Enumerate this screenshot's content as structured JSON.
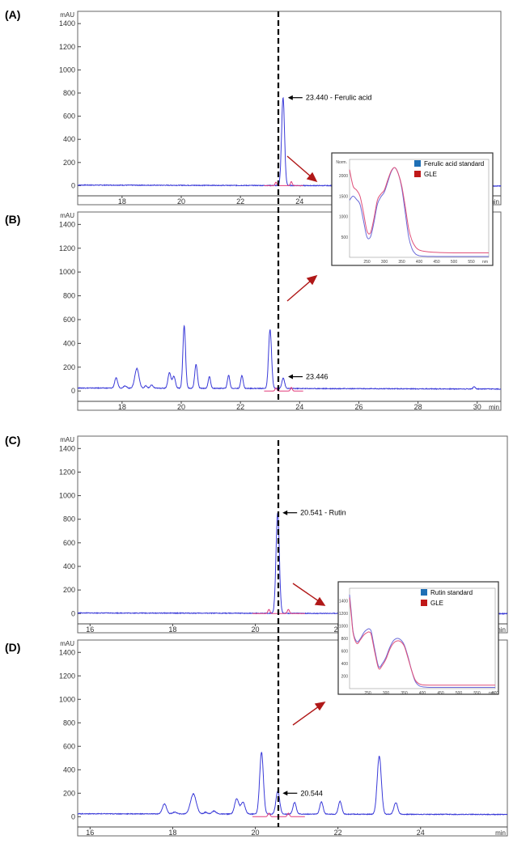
{
  "colors": {
    "trace": "#3a3ad8",
    "overlay": "#e03a7a",
    "baseline": "#3a3ad8",
    "arrow": "#b01818",
    "frame": "#666666",
    "dashed": "#000000",
    "legend_standard": "#1f6fb5",
    "legend_gle": "#c01818",
    "inset_standard": "#6a6ad8",
    "inset_gle": "#e0507a"
  },
  "chart_data": [
    {
      "id": "A",
      "type": "line",
      "panel_label": "(A)",
      "ylabel": "mAU",
      "xlabel": "min",
      "xlim": [
        16.5,
        30.8
      ],
      "ylim": [
        -60,
        1450
      ],
      "yticks": [
        0,
        200,
        400,
        600,
        800,
        1000,
        1200,
        1400
      ],
      "xticks": [
        18,
        20,
        22,
        24
      ],
      "baseline": 5,
      "peaks": [
        [
          23.44,
          760,
          0.05
        ]
      ],
      "overlay_peaks": [
        [
          23.2,
          30,
          0.03
        ],
        [
          23.72,
          35,
          0.03
        ]
      ],
      "annotation": {
        "x": 23.44,
        "y": 760,
        "text": "23.440 -  Ferulic acid"
      }
    },
    {
      "id": "B",
      "type": "line",
      "panel_label": "(B)",
      "ylabel": "mAU",
      "xlabel": "min",
      "xlim": [
        16.5,
        30.8
      ],
      "ylim": [
        -60,
        1450
      ],
      "yticks": [
        0,
        200,
        400,
        600,
        800,
        1000,
        1200,
        1400
      ],
      "xticks": [
        18,
        20,
        22,
        24,
        26,
        28,
        30
      ],
      "baseline": 25,
      "peaks": [
        [
          17.8,
          85,
          0.05
        ],
        [
          18.1,
          20,
          0.05
        ],
        [
          18.5,
          165,
          0.07
        ],
        [
          18.8,
          20,
          0.04
        ],
        [
          19.0,
          25,
          0.05
        ],
        [
          19.6,
          130,
          0.05
        ],
        [
          19.75,
          100,
          0.05
        ],
        [
          20.1,
          525,
          0.045
        ],
        [
          20.5,
          200,
          0.045
        ],
        [
          20.95,
          100,
          0.04
        ],
        [
          21.6,
          110,
          0.04
        ],
        [
          22.05,
          110,
          0.04
        ],
        [
          23.0,
          495,
          0.05
        ],
        [
          23.446,
          90,
          0.045
        ],
        [
          29.9,
          18,
          0.04
        ]
      ],
      "overlay_peaks": [
        [
          23.2,
          25,
          0.03
        ],
        [
          23.72,
          30,
          0.03
        ]
      ],
      "annotation": {
        "x": 23.446,
        "y": 120,
        "text": "23.446"
      }
    },
    {
      "id": "C",
      "type": "line",
      "panel_label": "(C)",
      "ylabel": "mAU",
      "xlabel": "min",
      "xlim": [
        15.7,
        26.1
      ],
      "ylim": [
        -60,
        1450
      ],
      "yticks": [
        0,
        200,
        400,
        600,
        800,
        1000,
        1200,
        1400
      ],
      "xticks": [
        16,
        18,
        20,
        22
      ],
      "baseline": 5,
      "peaks": [
        [
          20.541,
          855,
          0.04
        ]
      ],
      "overlay_peaks": [
        [
          20.33,
          35,
          0.025
        ],
        [
          20.8,
          35,
          0.025
        ]
      ],
      "annotation": {
        "x": 20.541,
        "y": 855,
        "text": "20.541 -  Rutin"
      }
    },
    {
      "id": "D",
      "type": "line",
      "panel_label": "(D)",
      "ylabel": "mAU",
      "xlabel": "min",
      "xlim": [
        15.7,
        26.1
      ],
      "ylim": [
        -60,
        1450
      ],
      "yticks": [
        0,
        200,
        400,
        600,
        800,
        1000,
        1200,
        1400
      ],
      "xticks": [
        16,
        18,
        20,
        22,
        24
      ],
      "baseline": 25,
      "peaks": [
        [
          17.8,
          85,
          0.05
        ],
        [
          18.05,
          15,
          0.05
        ],
        [
          18.5,
          170,
          0.07
        ],
        [
          18.8,
          15,
          0.04
        ],
        [
          19.0,
          25,
          0.05
        ],
        [
          19.55,
          130,
          0.05
        ],
        [
          19.7,
          100,
          0.05
        ],
        [
          20.15,
          525,
          0.045
        ],
        [
          20.544,
          195,
          0.045
        ],
        [
          20.95,
          100,
          0.04
        ],
        [
          21.6,
          105,
          0.04
        ],
        [
          22.05,
          110,
          0.04
        ],
        [
          23.0,
          495,
          0.05
        ],
        [
          23.4,
          100,
          0.045
        ]
      ],
      "overlay_peaks": [
        [
          20.33,
          30,
          0.025
        ],
        [
          20.8,
          30,
          0.025
        ]
      ],
      "annotation": {
        "x": 20.544,
        "y": 200,
        "text": "20.544"
      }
    }
  ],
  "insets": [
    {
      "id": "inset-ferulic",
      "xlim": [
        200,
        600
      ],
      "ylim": [
        0,
        2400
      ],
      "ylabel": "Norm.",
      "yticks": [
        500,
        1000,
        1500,
        2000
      ],
      "xticks": [
        250,
        300,
        350,
        400,
        450,
        500,
        550
      ],
      "xunit": "nm",
      "legend": [
        "Ferulic acid standard",
        "GLE"
      ],
      "series": [
        {
          "name": "Ferulic acid standard",
          "x": [
            200,
            210,
            220,
            230,
            240,
            250,
            260,
            270,
            280,
            290,
            300,
            310,
            320,
            330,
            340,
            350,
            360,
            370,
            380,
            390,
            400,
            420,
            450,
            500,
            550,
            600
          ],
          "y": [
            1400,
            1500,
            1420,
            1300,
            900,
            500,
            500,
            850,
            1300,
            1480,
            1600,
            1850,
            2100,
            2200,
            2050,
            1700,
            1100,
            500,
            200,
            80,
            40,
            25,
            20,
            20,
            20,
            20
          ]
        },
        {
          "name": "GLE",
          "x": [
            200,
            210,
            220,
            230,
            240,
            250,
            260,
            270,
            280,
            290,
            300,
            310,
            320,
            330,
            340,
            350,
            360,
            370,
            380,
            390,
            400,
            420,
            450,
            500,
            550,
            600
          ],
          "y": [
            2150,
            1750,
            1650,
            1500,
            1100,
            650,
            600,
            950,
            1400,
            1550,
            1650,
            1900,
            2120,
            2200,
            2050,
            1750,
            1250,
            700,
            400,
            250,
            180,
            140,
            120,
            110,
            110,
            110
          ]
        }
      ]
    },
    {
      "id": "inset-rutin",
      "xlim": [
        200,
        600
      ],
      "ylim": [
        0,
        1600
      ],
      "ylabel": "",
      "yticks": [
        200,
        400,
        600,
        800,
        1000,
        1200,
        1400
      ],
      "xticks": [
        250,
        300,
        350,
        400,
        450,
        500,
        550,
        600
      ],
      "xunit": "nm",
      "legend": [
        "Rutin standard",
        "GLE"
      ],
      "series": [
        {
          "name": "Rutin standard",
          "x": [
            200,
            205,
            210,
            220,
            230,
            240,
            250,
            255,
            260,
            270,
            280,
            290,
            300,
            310,
            320,
            330,
            340,
            350,
            360,
            370,
            380,
            390,
            400,
            420,
            450,
            500,
            550,
            600
          ],
          "y": [
            1500,
            1200,
            900,
            750,
            800,
            900,
            950,
            950,
            900,
            600,
            350,
            400,
            500,
            650,
            760,
            800,
            780,
            700,
            520,
            300,
            120,
            50,
            30,
            20,
            20,
            20,
            20,
            20
          ]
        },
        {
          "name": "GLE",
          "x": [
            200,
            205,
            210,
            220,
            230,
            240,
            250,
            255,
            260,
            270,
            280,
            290,
            300,
            310,
            320,
            330,
            340,
            350,
            360,
            370,
            380,
            390,
            400,
            420,
            450,
            500,
            550,
            600
          ],
          "y": [
            1450,
            1150,
            880,
            720,
            780,
            860,
            900,
            900,
            850,
            560,
            320,
            370,
            470,
            620,
            720,
            760,
            750,
            680,
            500,
            300,
            140,
            80,
            60,
            55,
            55,
            55,
            55,
            55
          ]
        }
      ]
    }
  ]
}
